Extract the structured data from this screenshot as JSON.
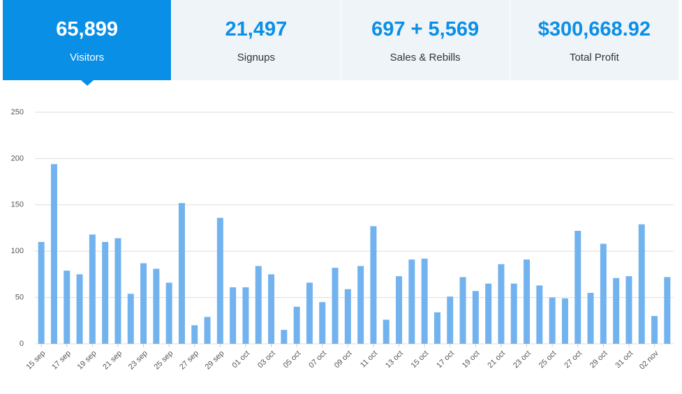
{
  "tabs": [
    {
      "value": "65,899",
      "label": "Visitors"
    },
    {
      "value": "21,497",
      "label": "Signups"
    },
    {
      "value": "697 + 5,569",
      "label": "Sales & Rebills"
    },
    {
      "value": "$300,668.92",
      "label": "Total Profit"
    }
  ],
  "chart_data": {
    "type": "bar",
    "color": "#72b3ef",
    "grid": true,
    "ylim": [
      0,
      250
    ],
    "yticks": [
      0,
      50,
      100,
      150,
      200,
      250
    ],
    "categories": [
      "15 sep",
      null,
      "17 sep",
      null,
      "19 sep",
      null,
      "21 sep",
      null,
      "23 sep",
      null,
      "25 sep",
      null,
      "27 sep",
      null,
      "29 sep",
      null,
      "01 oct",
      null,
      "03 oct",
      null,
      "05 oct",
      null,
      "07 oct",
      null,
      "09 oct",
      null,
      "11 oct",
      null,
      "13 oct",
      null,
      "15 oct",
      null,
      "17 oct",
      null,
      "19 oct",
      null,
      "21 oct",
      null,
      "23 oct",
      null,
      "25 oct",
      null,
      "27 oct",
      null,
      "29 oct",
      null,
      "31 oct",
      null,
      "02 nov",
      null
    ],
    "values": [
      110,
      194,
      79,
      75,
      118,
      110,
      114,
      54,
      87,
      81,
      66,
      152,
      20,
      29,
      136,
      61,
      61,
      84,
      75,
      15,
      40,
      66,
      45,
      82,
      59,
      84,
      127,
      26,
      73,
      91,
      92,
      34,
      51,
      72,
      57,
      65,
      86,
      65,
      91,
      63,
      50,
      49,
      122,
      55,
      108,
      71,
      73,
      129,
      30,
      72
    ]
  }
}
